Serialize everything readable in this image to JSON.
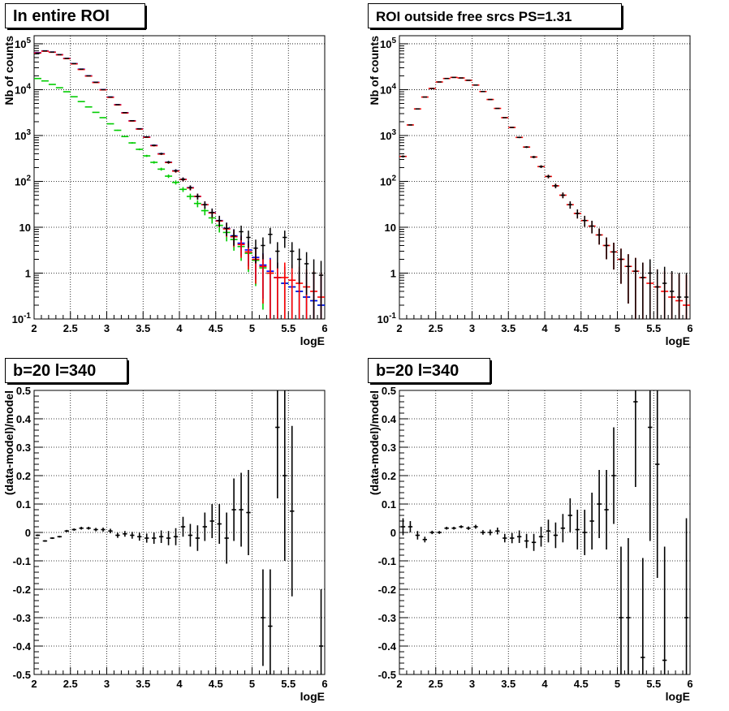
{
  "colors": {
    "data": "#000000",
    "model_total": "#ff0000",
    "model_blue": "#0000ff",
    "model_green": "#00cc00"
  },
  "chart_data": [
    {
      "type": "scatter",
      "title": "In entire ROI",
      "xlabel": "logE",
      "ylabel": "Nb of counts",
      "xlim": [
        2,
        6
      ],
      "ylim": [
        0.1,
        150000
      ],
      "yscale": "log",
      "grid": true,
      "x_ticks": [
        "2",
        "2.5",
        "3",
        "3.5",
        "4",
        "4.5",
        "5",
        "5.5",
        "6"
      ],
      "y_ticks": [
        "10^-1",
        "1",
        "10",
        "10^2",
        "10^3",
        "10^4",
        "10^5"
      ],
      "x": [
        2.05,
        2.15,
        2.25,
        2.35,
        2.45,
        2.55,
        2.65,
        2.75,
        2.85,
        2.95,
        3.05,
        3.15,
        3.25,
        3.35,
        3.45,
        3.55,
        3.65,
        3.75,
        3.85,
        3.95,
        4.05,
        4.15,
        4.25,
        4.35,
        4.45,
        4.55,
        4.65,
        4.75,
        4.85,
        4.95,
        5.05,
        5.15,
        5.25,
        5.35,
        5.45,
        5.55,
        5.65,
        5.75,
        5.85,
        5.95
      ],
      "series": [
        {
          "values": [
            62000,
            70000,
            66000,
            58000,
            48000,
            37000,
            28000,
            20000,
            14500,
            10000,
            6900,
            4700,
            3150,
            2100,
            1400,
            930,
            610,
            400,
            262,
            170,
            111,
            73,
            47,
            31,
            21,
            14,
            9.5,
            6.5,
            8,
            6,
            3.5,
            4,
            7,
            3,
            6,
            3,
            2,
            1.6,
            1,
            0.9
          ]
        },
        {
          "values": [
            63000,
            69000,
            65500,
            57500,
            47500,
            36500,
            27500,
            19800,
            14300,
            9900,
            6800,
            4650,
            3100,
            2070,
            1380,
            915,
            600,
            395,
            258,
            168,
            110,
            72,
            47,
            31,
            20.5,
            13.7,
            9.2,
            6.2,
            4.2,
            2.9,
            2,
            1.4,
            1,
            0.8,
            0.8,
            0.7,
            0.6,
            0.5,
            0.4,
            0.3
          ]
        },
        {
          "values": [
            64000,
            70000,
            66000,
            58000,
            48000,
            37000,
            28000,
            20000,
            14500,
            10000,
            6900,
            4700,
            3150,
            2100,
            1400,
            930,
            610,
            400,
            262,
            170,
            111,
            73,
            47,
            31,
            21,
            14,
            9.5,
            6.5,
            4.5,
            3.2,
            2.2,
            1.5,
            1.1,
            0.8,
            0.6,
            0.5,
            0.4,
            0.3,
            0.25,
            0.2
          ]
        },
        {
          "values": [
            17500,
            15500,
            13000,
            11000,
            9000,
            7000,
            5500,
            4200,
            3200,
            2450,
            1800,
            1300,
            950,
            690,
            500,
            360,
            260,
            185,
            130,
            95,
            67,
            47,
            33,
            23,
            16,
            11,
            7.7,
            5.4,
            3.8,
            2.7,
            1.9,
            1.3,
            1,
            0.8,
            0.6,
            0.5,
            0.4,
            0.3,
            0.25,
            0.2
          ]
        }
      ]
    },
    {
      "type": "scatter",
      "title": "ROI outside free srcs PS=1.31",
      "xlabel": "logE",
      "ylabel": "Nb of counts",
      "xlim": [
        2,
        6
      ],
      "ylim": [
        0.1,
        150000
      ],
      "yscale": "log",
      "grid": true,
      "x_ticks": [
        "2",
        "2.5",
        "3",
        "3.5",
        "4",
        "4.5",
        "5",
        "5.5",
        "6"
      ],
      "y_ticks": [
        "10^-1",
        "1",
        "10",
        "10^2",
        "10^3",
        "10^4",
        "10^5"
      ],
      "x": [
        2.05,
        2.15,
        2.25,
        2.35,
        2.45,
        2.55,
        2.65,
        2.75,
        2.85,
        2.95,
        3.05,
        3.15,
        3.25,
        3.35,
        3.45,
        3.55,
        3.65,
        3.75,
        3.85,
        3.95,
        4.05,
        4.15,
        4.25,
        4.35,
        4.45,
        4.55,
        4.65,
        4.75,
        4.85,
        4.95,
        5.05,
        5.15,
        5.25,
        5.35,
        5.45,
        5.55,
        5.65,
        5.75,
        5.85,
        5.95
      ],
      "series": [
        {
          "values": [
            350,
            1700,
            3800,
            6900,
            10600,
            14700,
            17500,
            18500,
            18000,
            16000,
            12600,
            9100,
            6100,
            3900,
            2450,
            1500,
            910,
            560,
            340,
            210,
            128,
            80,
            50,
            31,
            20,
            14,
            10.6,
            6.8,
            4,
            2.9,
            2,
            1.4,
            1.1,
            0.8,
            1,
            0.5,
            0.6,
            0.4,
            0.3,
            0.3
          ]
        },
        {
          "values": [
            350,
            1700,
            3800,
            6900,
            10600,
            14700,
            17500,
            18500,
            18000,
            16000,
            12600,
            9100,
            6100,
            3900,
            2450,
            1500,
            910,
            560,
            340,
            210,
            128,
            80,
            50,
            31,
            20,
            14,
            10.6,
            6.8,
            4,
            2.9,
            2,
            1.4,
            1.1,
            0.8,
            0.6,
            0.5,
            0.4,
            0.3,
            0.25,
            0.2
          ]
        }
      ]
    },
    {
      "type": "scatter",
      "title": "b=20 l=340",
      "xlabel": "logE",
      "ylabel": "(data-model)/model",
      "xlim": [
        2,
        6
      ],
      "ylim": [
        -0.5,
        0.5
      ],
      "grid": true,
      "x_ticks": [
        "2",
        "2.5",
        "3",
        "3.5",
        "4",
        "4.5",
        "5",
        "5.5",
        "6"
      ],
      "y_ticks": [
        "-0.5",
        "-0.4",
        "-0.3",
        "-0.2",
        "-0.1",
        "0",
        "0.1",
        "0.2",
        "0.3",
        "0.4",
        "0.5"
      ],
      "x": [
        2.05,
        2.15,
        2.25,
        2.35,
        2.45,
        2.55,
        2.65,
        2.75,
        2.85,
        2.95,
        3.05,
        3.15,
        3.25,
        3.35,
        3.45,
        3.55,
        3.65,
        3.75,
        3.85,
        3.95,
        4.05,
        4.15,
        4.25,
        4.35,
        4.45,
        4.55,
        4.65,
        4.75,
        4.85,
        4.95,
        5.05,
        5.15,
        5.25,
        5.35,
        5.45,
        5.55,
        5.65,
        5.75,
        5.85,
        5.95
      ],
      "values": [
        -0.01,
        -0.03,
        -0.02,
        -0.015,
        0.005,
        0.01,
        0.015,
        0.015,
        0.01,
        0.01,
        0.005,
        -0.01,
        -0.005,
        -0.01,
        -0.015,
        -0.02,
        -0.02,
        -0.015,
        -0.02,
        -0.015,
        0.02,
        -0.01,
        -0.02,
        0.02,
        0.04,
        0.03,
        -0.02,
        0.08,
        0.08,
        0.07,
        0.02,
        -0.3,
        -0.33,
        0.37,
        0.2,
        0.075,
        0.0,
        0.0,
        0.0,
        -0.4
      ],
      "errors": [
        0.003,
        0.003,
        0.003,
        0.003,
        0.004,
        0.004,
        0.005,
        0.005,
        0.006,
        0.007,
        0.008,
        0.009,
        0.01,
        0.012,
        0.014,
        0.016,
        0.02,
        0.022,
        0.025,
        0.03,
        0.035,
        0.04,
        0.045,
        0.05,
        0.06,
        0.07,
        0.09,
        0.11,
        0.13,
        0.15,
        0.17,
        0.17,
        0.2,
        0.25,
        0.3,
        0.3,
        0,
        0,
        0,
        0.2
      ],
      "shown": [
        1,
        1,
        1,
        1,
        1,
        1,
        1,
        1,
        1,
        1,
        1,
        1,
        1,
        1,
        1,
        1,
        1,
        1,
        1,
        1,
        1,
        1,
        1,
        1,
        1,
        1,
        1,
        1,
        1,
        1,
        0,
        1,
        1,
        1,
        1,
        1,
        0,
        0,
        0,
        1
      ]
    },
    {
      "type": "scatter",
      "title": "b=20 l=340",
      "xlabel": "logE",
      "ylabel": "(data-model)/model",
      "xlim": [
        2,
        6
      ],
      "ylim": [
        -0.5,
        0.5
      ],
      "grid": true,
      "x_ticks": [
        "2",
        "2.5",
        "3",
        "3.5",
        "4",
        "4.5",
        "5",
        "5.5",
        "6"
      ],
      "y_ticks": [
        "-0.5",
        "-0.4",
        "-0.3",
        "-0.2",
        "-0.1",
        "0",
        "0.1",
        "0.2",
        "0.3",
        "0.4",
        "0.5"
      ],
      "x": [
        2.05,
        2.15,
        2.25,
        2.35,
        2.45,
        2.55,
        2.65,
        2.75,
        2.85,
        2.95,
        3.05,
        3.15,
        3.25,
        3.35,
        3.45,
        3.55,
        3.65,
        3.75,
        3.85,
        3.95,
        4.05,
        4.15,
        4.25,
        4.35,
        4.45,
        4.55,
        4.65,
        4.75,
        4.85,
        4.95,
        5.05,
        5.15,
        5.25,
        5.35,
        5.45,
        5.55,
        5.65,
        5.75,
        5.85,
        5.95
      ],
      "values": [
        0.02,
        0.02,
        -0.01,
        -0.025,
        0.0,
        0.0,
        0.015,
        0.015,
        0.02,
        0.015,
        0.02,
        0.0,
        0.0,
        0.005,
        -0.02,
        -0.02,
        -0.015,
        -0.03,
        -0.035,
        -0.015,
        0.005,
        -0.01,
        0.015,
        0.06,
        0.01,
        0.0,
        0.04,
        0.1,
        0.08,
        0.2,
        -0.3,
        -0.3,
        0.46,
        -0.44,
        0.37,
        0.24,
        -0.45,
        0.0,
        0.0,
        -0.3
      ],
      "errors": [
        0.03,
        0.02,
        0.015,
        0.01,
        0.006,
        0.005,
        0.005,
        0.005,
        0.005,
        0.006,
        0.007,
        0.008,
        0.01,
        0.012,
        0.015,
        0.018,
        0.022,
        0.025,
        0.03,
        0.035,
        0.04,
        0.045,
        0.05,
        0.06,
        0.07,
        0.08,
        0.1,
        0.12,
        0.14,
        0.17,
        0.25,
        0.28,
        0.3,
        0.35,
        0.4,
        0.4,
        0.4,
        0,
        0,
        0.35
      ],
      "shown": [
        1,
        1,
        1,
        1,
        1,
        1,
        1,
        1,
        1,
        1,
        1,
        1,
        1,
        1,
        1,
        1,
        1,
        1,
        1,
        1,
        1,
        1,
        1,
        1,
        1,
        1,
        1,
        1,
        1,
        1,
        1,
        1,
        1,
        1,
        1,
        1,
        1,
        0,
        0,
        1
      ]
    }
  ]
}
